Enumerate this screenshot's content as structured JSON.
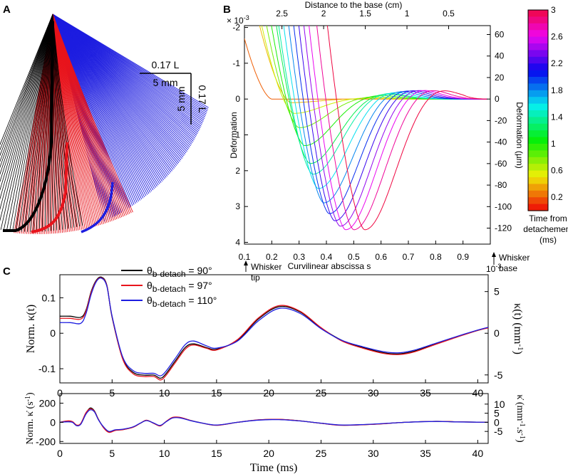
{
  "panels": {
    "a": "A",
    "b": "B",
    "c": "C"
  },
  "panel_a": {
    "scale_h_top": "0.17 L",
    "scale_h_bottom": "5 mm",
    "scale_v_left": "5 mm",
    "scale_v_right": "0.17 L",
    "colors": {
      "black_set": "#000000",
      "red_set": "#e8141c",
      "blue_set": "#1d1de0"
    }
  },
  "chart_data": [
    {
      "type": "line",
      "panel": "B",
      "xlabel": "Curvilinear abscissa s",
      "ylabel": "Deformation",
      "y_multiplier": "× 10",
      "y_multiplier_exp": "-3",
      "top_xlabel": "Distance to the base (cm)",
      "right_ylabel": "Deformation (µm)",
      "x_ticks": [
        "0.1",
        "0.2",
        "0.3",
        "0.4",
        "0.5",
        "0.6",
        "0.7",
        "0.8",
        "0.9"
      ],
      "y_ticks": [
        "-2",
        "-1",
        "0",
        "1",
        "2",
        "3",
        "4"
      ],
      "top_x_ticks": [
        "2.5",
        "2",
        "1.5",
        "1",
        "0.5"
      ],
      "right_y_ticks": [
        "60",
        "40",
        "20",
        "0",
        "-20",
        "-40",
        "-60",
        "-80",
        "-100",
        "-120"
      ],
      "xlim": [
        0.1,
        1.0
      ],
      "ylim": [
        -2.05,
        4.05
      ],
      "y_inverted": true,
      "tip_annotation": "Whisker tip",
      "base_annotation": "Whisker base",
      "colorbar": {
        "title": "Time from detachement (ms)",
        "title_lines": [
          "Time from",
          "detachement",
          "(ms)"
        ],
        "range": [
          0,
          3
        ],
        "ticks": [
          "3",
          "2.6",
          "2.2",
          "1.8",
          "1.4",
          "1",
          "0.6",
          "0.2"
        ]
      },
      "curves": [
        {
          "time": 0.2,
          "min_s": 0.2,
          "min_d": 0.0
        },
        {
          "time": 0.4,
          "min_s": 0.27,
          "min_d": 0.1
        },
        {
          "time": 0.6,
          "min_s": 0.28,
          "min_d": 0.4
        },
        {
          "time": 0.8,
          "min_s": 0.3,
          "min_d": 0.8
        },
        {
          "time": 1.0,
          "min_s": 0.32,
          "min_d": 1.3
        },
        {
          "time": 1.2,
          "min_s": 0.34,
          "min_d": 1.8
        },
        {
          "time": 1.4,
          "min_s": 0.35,
          "min_d": 2.1
        },
        {
          "time": 1.6,
          "min_s": 0.37,
          "min_d": 2.5
        },
        {
          "time": 1.8,
          "min_s": 0.39,
          "min_d": 2.9
        },
        {
          "time": 2.0,
          "min_s": 0.41,
          "min_d": 3.2
        },
        {
          "time": 2.2,
          "min_s": 0.43,
          "min_d": 3.4
        },
        {
          "time": 2.4,
          "min_s": 0.45,
          "min_d": 3.55
        },
        {
          "time": 2.6,
          "min_s": 0.47,
          "min_d": 3.65
        },
        {
          "time": 2.8,
          "min_s": 0.5,
          "min_d": 3.65
        },
        {
          "time": 3.0,
          "min_s": 0.54,
          "min_d": 3.65
        }
      ]
    },
    {
      "type": "line",
      "panel": "C-top",
      "ylabel": "Norm. κ(t)",
      "right_ylabel": "κ(t) (mm-1)",
      "right_multiplier": "10-3",
      "x_ticks": [
        "0",
        "5",
        "10",
        "15",
        "20",
        "25",
        "30",
        "35",
        "40"
      ],
      "y_ticks": [
        "0.1",
        "0",
        "-0.1"
      ],
      "right_y_ticks": [
        "5",
        "0",
        "-5"
      ],
      "xlim": [
        0,
        41
      ],
      "ylim": [
        -0.14,
        0.165
      ],
      "legend": {
        "placement": "top-left",
        "entries": [
          "θb-detach = 90°",
          "θb-detach = 97°",
          "θb-detach = 110°"
        ]
      },
      "series": [
        {
          "name": "θb-detach = 90°",
          "color": "#000000",
          "x": [
            0,
            1,
            2,
            2.5,
            3,
            3.5,
            4,
            4.5,
            5,
            6,
            7,
            8,
            9,
            9.8,
            11,
            12,
            12.8,
            14,
            15,
            17,
            19,
            21,
            23,
            25,
            27,
            29,
            31,
            32.5,
            34,
            36,
            38,
            40,
            41
          ],
          "y": [
            0.048,
            0.048,
            0.045,
            0.065,
            0.118,
            0.15,
            0.158,
            0.135,
            0.045,
            -0.07,
            -0.11,
            -0.118,
            -0.118,
            -0.125,
            -0.08,
            -0.04,
            -0.03,
            -0.04,
            -0.045,
            -0.02,
            0.04,
            0.075,
            0.06,
            0.015,
            -0.02,
            -0.04,
            -0.055,
            -0.058,
            -0.05,
            -0.03,
            -0.01,
            0.008,
            0.016
          ]
        },
        {
          "name": "θb-detach = 97°",
          "color": "#e8141c",
          "x": [
            0,
            1,
            2,
            2.5,
            3,
            3.5,
            4,
            4.5,
            5,
            6,
            7,
            8,
            9,
            9.8,
            11,
            12,
            12.8,
            14,
            15,
            17,
            19,
            21,
            23,
            25,
            27,
            29,
            31,
            32.5,
            34,
            36,
            38,
            40,
            41
          ],
          "y": [
            0.042,
            0.042,
            0.04,
            0.062,
            0.115,
            0.148,
            0.156,
            0.134,
            0.046,
            -0.072,
            -0.114,
            -0.122,
            -0.122,
            -0.13,
            -0.085,
            -0.045,
            -0.033,
            -0.042,
            -0.047,
            -0.018,
            0.043,
            0.078,
            0.062,
            0.016,
            -0.022,
            -0.042,
            -0.057,
            -0.06,
            -0.052,
            -0.031,
            -0.011,
            0.008,
            0.015
          ]
        },
        {
          "name": "θb-detach = 110°",
          "color": "#1d1de0",
          "x": [
            0,
            1,
            2,
            2.5,
            3,
            3.5,
            4,
            4.5,
            5,
            6,
            7,
            8,
            9,
            9.8,
            11,
            12,
            12.8,
            14,
            15,
            17,
            19,
            21,
            23,
            25,
            27,
            29,
            31,
            32.5,
            34,
            36,
            38,
            40,
            41
          ],
          "y": [
            0.03,
            0.03,
            0.028,
            0.055,
            0.11,
            0.146,
            0.155,
            0.132,
            0.048,
            -0.066,
            -0.105,
            -0.113,
            -0.113,
            -0.118,
            -0.073,
            -0.032,
            -0.022,
            -0.035,
            -0.042,
            -0.022,
            0.035,
            0.07,
            0.056,
            0.013,
            -0.02,
            -0.038,
            -0.052,
            -0.055,
            -0.047,
            -0.028,
            -0.009,
            0.009,
            0.017
          ]
        }
      ]
    },
    {
      "type": "line",
      "panel": "C-bottom",
      "xlabel": "Time (ms)",
      "ylabel": "Norm. κ̇ (s-1)",
      "right_ylabel": "κ̇ (mm-1.s-1)",
      "x_ticks": [
        "0",
        "5",
        "10",
        "15",
        "20",
        "25",
        "30",
        "35",
        "40"
      ],
      "y_ticks": [
        "200",
        "0",
        "-200"
      ],
      "right_y_ticks": [
        "10",
        "5",
        "0",
        "-5"
      ],
      "xlim": [
        0,
        41
      ],
      "ylim": [
        -220,
        300
      ],
      "series": [
        {
          "name": "θb-detach = 90°",
          "color": "#000000",
          "x": [
            0,
            0.7,
            1.2,
            1.6,
            2.0,
            2.5,
            2.9,
            3.3,
            3.7,
            4.2,
            4.7,
            5.3,
            6,
            7,
            7.7,
            8.3,
            9,
            9.6,
            10.2,
            10.8,
            11.5,
            12.5,
            13.5,
            15,
            17,
            19,
            21,
            23,
            25,
            27,
            30,
            33,
            36,
            38,
            41
          ],
          "y": [
            0,
            10,
            5,
            -30,
            -15,
            95,
            150,
            120,
            30,
            -55,
            -100,
            -80,
            -75,
            -50,
            -10,
            20,
            -10,
            -35,
            10,
            50,
            50,
            20,
            -5,
            -30,
            0,
            25,
            30,
            15,
            -10,
            -30,
            -20,
            0,
            10,
            5,
            0
          ]
        },
        {
          "name": "θb-detach = 97°",
          "color": "#e8141c",
          "x": [
            0,
            0.7,
            1.2,
            1.6,
            2.0,
            2.5,
            2.9,
            3.3,
            3.7,
            4.2,
            4.7,
            5.3,
            6,
            7,
            7.7,
            8.3,
            9,
            9.6,
            10.2,
            10.8,
            11.5,
            12.5,
            13.5,
            15,
            17,
            19,
            21,
            23,
            25,
            27,
            30,
            33,
            36,
            38,
            41
          ],
          "y": [
            0,
            15,
            8,
            -28,
            -12,
            100,
            140,
            115,
            30,
            -60,
            -105,
            -85,
            -78,
            -52,
            -10,
            22,
            -12,
            -38,
            12,
            52,
            52,
            20,
            -5,
            -31,
            0,
            26,
            31,
            15,
            -10,
            -31,
            -21,
            0,
            10,
            5,
            0
          ]
        },
        {
          "name": "θb-detach = 110°",
          "color": "#1d1de0",
          "x": [
            0,
            0.7,
            1.2,
            1.6,
            2.0,
            2.5,
            2.9,
            3.3,
            3.7,
            4.2,
            4.7,
            5.3,
            6,
            7,
            7.7,
            8.3,
            9,
            9.6,
            10.2,
            10.8,
            11.5,
            12.5,
            13.5,
            15,
            17,
            19,
            21,
            23,
            25,
            27,
            30,
            33,
            36,
            38,
            41
          ],
          "y": [
            0,
            5,
            0,
            -35,
            -20,
            85,
            130,
            110,
            25,
            -50,
            -95,
            -78,
            -72,
            -48,
            -8,
            18,
            -8,
            -32,
            8,
            45,
            46,
            18,
            -5,
            -28,
            0,
            23,
            28,
            14,
            -9,
            -28,
            -19,
            0,
            9,
            4,
            0
          ]
        }
      ]
    }
  ]
}
